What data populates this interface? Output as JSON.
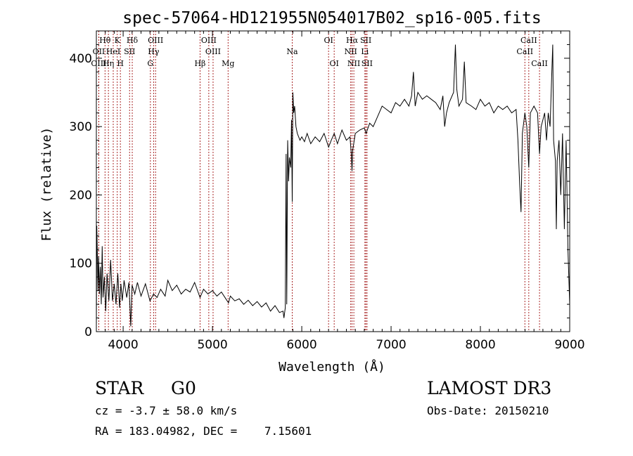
{
  "chart_data": {
    "type": "line",
    "title": "spec-57064-HD121955N054017B02_sp16-005.fits",
    "xlabel": "Wavelength (Å)",
    "ylabel": "Flux (relative)",
    "xlim": [
      3700,
      9000
    ],
    "ylim": [
      0,
      440
    ],
    "grid": false,
    "x_ticks": [
      4000,
      5000,
      6000,
      7000,
      8000,
      9000
    ],
    "x_tick_labels": [
      "4000",
      "5000",
      "6000",
      "7000",
      "8000",
      "9000"
    ],
    "y_ticks": [
      0,
      100,
      200,
      300,
      400
    ],
    "y_tick_labels": [
      "0",
      "100",
      "200",
      "300",
      "400"
    ],
    "colors": {
      "spectrum": "#000000",
      "lines": "#a01010",
      "labels": "#000000"
    },
    "series": [
      {
        "name": "flux",
        "points": [
          [
            3700,
            8
          ],
          [
            3705,
            155
          ],
          [
            3710,
            120
          ],
          [
            3718,
            60
          ],
          [
            3725,
            110
          ],
          [
            3735,
            55
          ],
          [
            3745,
            95
          ],
          [
            3755,
            40
          ],
          [
            3765,
            125
          ],
          [
            3775,
            50
          ],
          [
            3790,
            80
          ],
          [
            3805,
            30
          ],
          [
            3820,
            85
          ],
          [
            3840,
            45
          ],
          [
            3860,
            105
          ],
          [
            3880,
            45
          ],
          [
            3900,
            70
          ],
          [
            3920,
            40
          ],
          [
            3940,
            85
          ],
          [
            3960,
            35
          ],
          [
            3975,
            70
          ],
          [
            3990,
            45
          ],
          [
            4010,
            75
          ],
          [
            4040,
            50
          ],
          [
            4065,
            72
          ],
          [
            4085,
            8
          ],
          [
            4100,
            68
          ],
          [
            4130,
            55
          ],
          [
            4160,
            72
          ],
          [
            4200,
            52
          ],
          [
            4250,
            70
          ],
          [
            4300,
            45
          ],
          [
            4340,
            55
          ],
          [
            4380,
            50
          ],
          [
            4420,
            62
          ],
          [
            4470,
            52
          ],
          [
            4500,
            75
          ],
          [
            4550,
            60
          ],
          [
            4600,
            68
          ],
          [
            4650,
            55
          ],
          [
            4700,
            62
          ],
          [
            4750,
            58
          ],
          [
            4800,
            72
          ],
          [
            4861,
            50
          ],
          [
            4900,
            62
          ],
          [
            4950,
            55
          ],
          [
            5000,
            60
          ],
          [
            5050,
            52
          ],
          [
            5100,
            58
          ],
          [
            5150,
            48
          ],
          [
            5180,
            42
          ],
          [
            5200,
            52
          ],
          [
            5250,
            45
          ],
          [
            5300,
            48
          ],
          [
            5350,
            40
          ],
          [
            5400,
            46
          ],
          [
            5450,
            38
          ],
          [
            5500,
            44
          ],
          [
            5550,
            36
          ],
          [
            5600,
            42
          ],
          [
            5650,
            30
          ],
          [
            5700,
            38
          ],
          [
            5750,
            28
          ],
          [
            5790,
            30
          ],
          [
            5800,
            20
          ],
          [
            5815,
            35
          ],
          [
            5825,
            260
          ],
          [
            5832,
            40
          ],
          [
            5842,
            280
          ],
          [
            5852,
            220
          ],
          [
            5862,
            255
          ],
          [
            5876,
            240
          ],
          [
            5885,
            310
          ],
          [
            5893,
            190
          ],
          [
            5900,
            350
          ],
          [
            5910,
            320
          ],
          [
            5920,
            330
          ],
          [
            5935,
            300
          ],
          [
            5950,
            290
          ],
          [
            5980,
            280
          ],
          [
            6000,
            285
          ],
          [
            6030,
            278
          ],
          [
            6060,
            290
          ],
          [
            6100,
            275
          ],
          [
            6150,
            285
          ],
          [
            6200,
            278
          ],
          [
            6250,
            290
          ],
          [
            6300,
            270
          ],
          [
            6330,
            280
          ],
          [
            6363,
            290
          ],
          [
            6400,
            275
          ],
          [
            6450,
            295
          ],
          [
            6500,
            280
          ],
          [
            6540,
            285
          ],
          [
            6555,
            260
          ],
          [
            6563,
            235
          ],
          [
            6570,
            265
          ],
          [
            6600,
            290
          ],
          [
            6650,
            295
          ],
          [
            6700,
            298
          ],
          [
            6720,
            290
          ],
          [
            6760,
            305
          ],
          [
            6800,
            300
          ],
          [
            6850,
            315
          ],
          [
            6900,
            330
          ],
          [
            6950,
            325
          ],
          [
            7000,
            320
          ],
          [
            7050,
            335
          ],
          [
            7100,
            330
          ],
          [
            7150,
            340
          ],
          [
            7200,
            330
          ],
          [
            7230,
            345
          ],
          [
            7250,
            380
          ],
          [
            7270,
            330
          ],
          [
            7300,
            350
          ],
          [
            7350,
            340
          ],
          [
            7400,
            345
          ],
          [
            7450,
            340
          ],
          [
            7500,
            335
          ],
          [
            7550,
            325
          ],
          [
            7580,
            345
          ],
          [
            7600,
            300
          ],
          [
            7620,
            320
          ],
          [
            7650,
            335
          ],
          [
            7700,
            350
          ],
          [
            7720,
            420
          ],
          [
            7735,
            355
          ],
          [
            7760,
            330
          ],
          [
            7800,
            340
          ],
          [
            7820,
            395
          ],
          [
            7840,
            335
          ],
          [
            7900,
            330
          ],
          [
            7950,
            325
          ],
          [
            8000,
            340
          ],
          [
            8050,
            330
          ],
          [
            8100,
            335
          ],
          [
            8150,
            320
          ],
          [
            8200,
            330
          ],
          [
            8250,
            325
          ],
          [
            8300,
            330
          ],
          [
            8350,
            320
          ],
          [
            8400,
            325
          ],
          [
            8420,
            280
          ],
          [
            8440,
            215
          ],
          [
            8455,
            175
          ],
          [
            8470,
            290
          ],
          [
            8498,
            320
          ],
          [
            8520,
            300
          ],
          [
            8542,
            240
          ],
          [
            8560,
            320
          ],
          [
            8600,
            330
          ],
          [
            8640,
            320
          ],
          [
            8662,
            260
          ],
          [
            8680,
            300
          ],
          [
            8700,
            310
          ],
          [
            8720,
            320
          ],
          [
            8740,
            280
          ],
          [
            8760,
            320
          ],
          [
            8780,
            300
          ],
          [
            8800,
            380
          ],
          [
            8810,
            420
          ],
          [
            8820,
            280
          ],
          [
            8840,
            250
          ],
          [
            8850,
            150
          ],
          [
            8860,
            250
          ],
          [
            8880,
            280
          ],
          [
            8900,
            200
          ],
          [
            8920,
            290
          ],
          [
            8940,
            150
          ],
          [
            8960,
            280
          ],
          [
            8980,
            120
          ],
          [
            9000,
            40
          ]
        ]
      }
    ],
    "lines": [
      {
        "label": "Hθ",
        "wl": 3797,
        "row": 1
      },
      {
        "label": "OII",
        "wl": 3727,
        "row": 2
      },
      {
        "label": "OIII",
        "wl": 3727,
        "row": 3
      },
      {
        "label": "K",
        "wl": 3934,
        "row": 1
      },
      {
        "label": "HeI",
        "wl": 3889,
        "row": 2
      },
      {
        "label": "Hη",
        "wl": 3835,
        "row": 3
      },
      {
        "label": "Hδ",
        "wl": 4102,
        "row": 1
      },
      {
        "label": "SII",
        "wl": 4072,
        "row": 2
      },
      {
        "label": "H",
        "wl": 3969,
        "row": 3
      },
      {
        "label": "OIII",
        "wl": 4363,
        "row": 1
      },
      {
        "label": "Hγ",
        "wl": 4341,
        "row": 2
      },
      {
        "label": "G",
        "wl": 4305,
        "row": 3
      },
      {
        "label": "OIII",
        "wl": 4959,
        "row": 1
      },
      {
        "label": "OIII",
        "wl": 5007,
        "row": 2
      },
      {
        "label": "Hβ",
        "wl": 4861,
        "row": 3
      },
      {
        "label": "Mg",
        "wl": 5175,
        "row": 3
      },
      {
        "label": "Na",
        "wl": 5893,
        "row": 2
      },
      {
        "label": "OI",
        "wl": 6300,
        "row": 1
      },
      {
        "label": "OI",
        "wl": 6363,
        "row": 3
      },
      {
        "label": "Hα",
        "wl": 6563,
        "row": 1
      },
      {
        "label": "NII",
        "wl": 6548,
        "row": 2
      },
      {
        "label": "NII",
        "wl": 6583,
        "row": 3
      },
      {
        "label": "SII",
        "wl": 6717,
        "row": 1
      },
      {
        "label": "Li",
        "wl": 6707,
        "row": 2
      },
      {
        "label": "SII",
        "wl": 6731,
        "row": 3
      },
      {
        "label": "CaII",
        "wl": 8542,
        "row": 1
      },
      {
        "label": "CaII",
        "wl": 8498,
        "row": 2
      },
      {
        "label": "CaII",
        "wl": 8662,
        "row": 3
      }
    ]
  },
  "info": {
    "object_class": "STAR",
    "subclass": "G0",
    "survey": "LAMOST DR3",
    "redshift": "cz = -3.7 ± 58.0 km/s",
    "obs_date": "Obs-Date: 20150210",
    "coordinates": "RA = 183.04982, DEC =    7.15601"
  }
}
